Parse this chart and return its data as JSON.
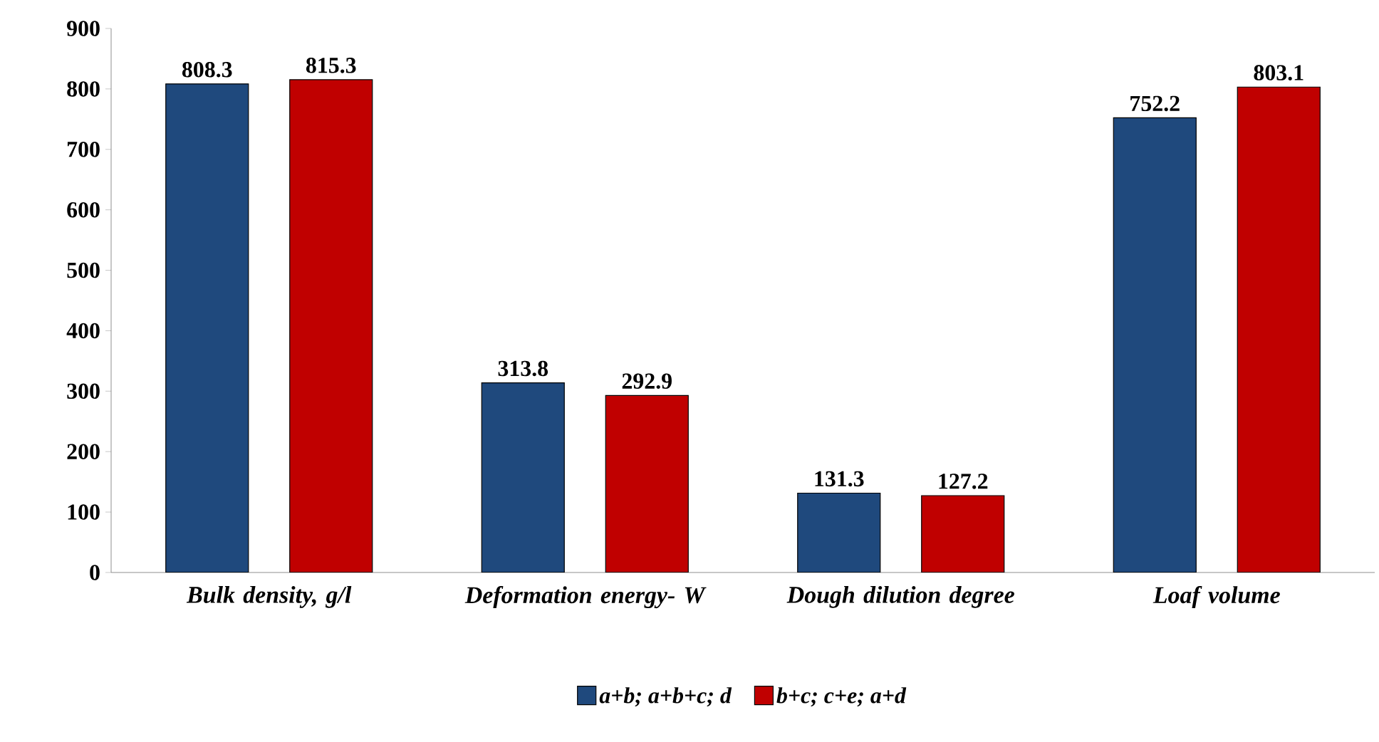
{
  "chart_data": {
    "type": "bar",
    "categories": [
      "Bulk density, g/l",
      "Deformation energy- W",
      "Dough dilution degree",
      "Loaf volume"
    ],
    "series": [
      {
        "name": "a+b; a+b+c; d",
        "color": "#1f497d",
        "values": [
          808.3,
          313.8,
          131.3,
          752.2
        ]
      },
      {
        "name": "b+c; c+e; a+d",
        "color": "#c00000",
        "values": [
          815.3,
          292.9,
          127.2,
          803.1
        ]
      }
    ],
    "ylim": [
      0,
      900
    ],
    "yticks": [
      0,
      100,
      200,
      300,
      400,
      500,
      600,
      700,
      800,
      900
    ],
    "data_labels": true,
    "legend": "bottom"
  }
}
